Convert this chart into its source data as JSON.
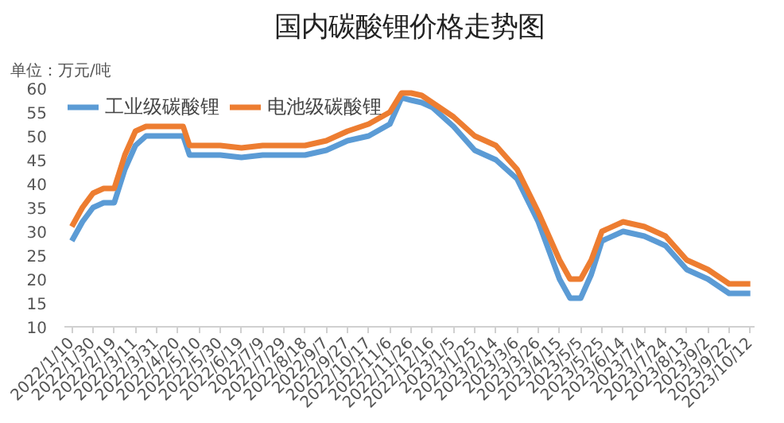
{
  "chart_data": {
    "type": "line",
    "title": "国内碳酸锂价格走势图",
    "annotations": [
      "单位：万元/吨"
    ],
    "x": [
      "2022-01-10",
      "2022-01-20",
      "2022-01-30",
      "2022-02-09",
      "2022-02-19",
      "2022-03-01",
      "2022-03-11",
      "2022-03-21",
      "2022-03-31",
      "2022-04-10",
      "2022-04-25",
      "2022-05-01",
      "2022-05-10",
      "2022-05-30",
      "2022-06-19",
      "2022-07-09",
      "2022-07-29",
      "2022-08-18",
      "2022-09-07",
      "2022-09-27",
      "2022-10-17",
      "2022-11-06",
      "2022-11-17",
      "2022-11-26",
      "2022-12-06",
      "2022-12-16",
      "2023-01-05",
      "2023-01-25",
      "2023-02-14",
      "2023-03-06",
      "2023-03-26",
      "2023-04-15",
      "2023-04-25",
      "2023-05-05",
      "2023-05-15",
      "2023-05-25",
      "2023-06-14",
      "2023-07-04",
      "2023-07-24",
      "2023-08-13",
      "2023-09-02",
      "2023-09-22",
      "2023-10-12"
    ],
    "series": [
      {
        "name": "工业级碳酸锂",
        "color": "#5b9bd5",
        "values": [
          28,
          32,
          35,
          36,
          36,
          43,
          48,
          50,
          50,
          50,
          50,
          46,
          46,
          46,
          45.5,
          46,
          46,
          46,
          47,
          49,
          50,
          52.5,
          58,
          57.5,
          57,
          56,
          52,
          47,
          45,
          41,
          32,
          20,
          16,
          16,
          21,
          28,
          30,
          29,
          27,
          22,
          20,
          17,
          17
        ]
      },
      {
        "name": "电池级碳酸锂",
        "color": "#ed7d31",
        "values": [
          31,
          35,
          38,
          39,
          39,
          46,
          51,
          52,
          52,
          52,
          52,
          48,
          48,
          48,
          47.5,
          48,
          48,
          48,
          49,
          51,
          52.5,
          55,
          59,
          59,
          58.5,
          57,
          54,
          50,
          48,
          43,
          34,
          24,
          20,
          20,
          24,
          30,
          32,
          31,
          29,
          24,
          22,
          19,
          19
        ]
      }
    ],
    "ylim": [
      10,
      60
    ],
    "yticks": [
      10,
      15,
      20,
      25,
      30,
      35,
      40,
      45,
      50,
      55,
      60
    ],
    "xlim": [
      "2022-01-03",
      "2023-10-16"
    ],
    "xticks": [
      {
        "value": "2022-01-10",
        "label": "2022/1/10"
      },
      {
        "value": "2022-01-30",
        "label": "2022/1/30"
      },
      {
        "value": "2022-02-19",
        "label": "2022/2/19"
      },
      {
        "value": "2022-03-11",
        "label": "2022/3/11"
      },
      {
        "value": "2022-03-31",
        "label": "2022/3/31"
      },
      {
        "value": "2022-04-20",
        "label": "2022/4/20"
      },
      {
        "value": "2022-05-10",
        "label": "2022/5/10"
      },
      {
        "value": "2022-05-30",
        "label": "2022/5/30"
      },
      {
        "value": "2022-06-19",
        "label": "2022/6/19"
      },
      {
        "value": "2022-07-09",
        "label": "2022/7/9"
      },
      {
        "value": "2022-07-29",
        "label": "2022/7/29"
      },
      {
        "value": "2022-08-18",
        "label": "2022/8/18"
      },
      {
        "value": "2022-09-07",
        "label": "2022/9/7"
      },
      {
        "value": "2022-09-27",
        "label": "2022/9/27"
      },
      {
        "value": "2022-10-17",
        "label": "2022/10/17"
      },
      {
        "value": "2022-11-06",
        "label": "2022/11/6"
      },
      {
        "value": "2022-11-26",
        "label": "2022/11/26"
      },
      {
        "value": "2022-12-16",
        "label": "2022/12/16"
      },
      {
        "value": "2023-01-05",
        "label": "2023/1/5"
      },
      {
        "value": "2023-01-25",
        "label": "2023/1/25"
      },
      {
        "value": "2023-02-14",
        "label": "2023/2/14"
      },
      {
        "value": "2023-03-06",
        "label": "2023/3/6"
      },
      {
        "value": "2023-03-26",
        "label": "2023/3/26"
      },
      {
        "value": "2023-04-15",
        "label": "2023/4/15"
      },
      {
        "value": "2023-05-05",
        "label": "2023/5/5"
      },
      {
        "value": "2023-05-25",
        "label": "2023/5/25"
      },
      {
        "value": "2023-06-14",
        "label": "2023/6/14"
      },
      {
        "value": "2023-07-04",
        "label": "2023/7/4"
      },
      {
        "value": "2023-07-24",
        "label": "2023/7/24"
      },
      {
        "value": "2023-08-13",
        "label": "2023/8/13"
      },
      {
        "value": "2023-09-02",
        "label": "2023/9/2"
      },
      {
        "value": "2023-09-22",
        "label": "2023/9/22"
      },
      {
        "value": "2023-10-12",
        "label": "2023/10/12"
      }
    ],
    "legend": "top left",
    "grid": false,
    "marker": "none",
    "line_style": "solid"
  }
}
